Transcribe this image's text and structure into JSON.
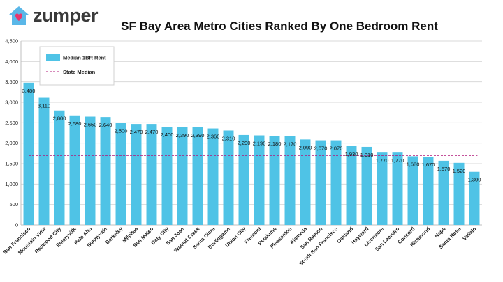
{
  "brand": {
    "name": "zumper",
    "icon": "house-heart-icon",
    "icon_color": "#5ab7e8",
    "heart_color": "#e8356d"
  },
  "chart_data": {
    "type": "bar",
    "title": "SF Bay Area Metro Cities Ranked By One Bedroom Rent",
    "xlabel": "",
    "ylabel": "",
    "ylim": [
      0,
      4500
    ],
    "yticks": [
      0,
      500,
      1000,
      1500,
      2000,
      2500,
      3000,
      3500,
      4000,
      4500
    ],
    "ytick_labels": [
      "0",
      "500",
      "1,000",
      "1,500",
      "2,000",
      "2,500",
      "3,000",
      "3,500",
      "4,000",
      "4,500"
    ],
    "grid": true,
    "legend_position": "top-left",
    "categories": [
      "San Francisco",
      "Mountain View",
      "Redwood City",
      "Emeryville",
      "Palo Alto",
      "Sunnyvale",
      "Berkeley",
      "Milpitas",
      "San Mateo",
      "Daly City",
      "San Jose",
      "Walnut Creek",
      "Santa Clara",
      "Burlingame",
      "Union City",
      "Fremont",
      "Petaluma",
      "Pleasanton",
      "Alameda",
      "San Ramon",
      "South San Francisco",
      "Oakland",
      "Hayward",
      "Livermore",
      "San Leandro",
      "Concord",
      "Richmond",
      "Napa",
      "Santa Rosa",
      "Vallejo"
    ],
    "series": [
      {
        "name": "Median 1BR Rent",
        "color": "#4fc3e6",
        "values": [
          3480,
          3110,
          2800,
          2680,
          2650,
          2640,
          2500,
          2470,
          2470,
          2400,
          2390,
          2390,
          2360,
          2310,
          2200,
          2190,
          2180,
          2170,
          2090,
          2070,
          2070,
          1930,
          1910,
          1770,
          1770,
          1680,
          1670,
          1570,
          1520,
          1300
        ]
      }
    ],
    "data_labels": [
      "3,480",
      "3,110",
      "2,800",
      "2,680",
      "2,650",
      "2,640",
      "2,500",
      "2,470",
      "2,470",
      "2,400",
      "2,390",
      "2,390",
      "2,360",
      "2,310",
      "2,200",
      "2,190",
      "2,180",
      "2,170",
      "2,090",
      "2,070",
      "2,070",
      "1,930",
      "1,910",
      "1,770",
      "1,770",
      "1,680",
      "1,670",
      "1,570",
      "1,520",
      "1,300"
    ],
    "reference_line": {
      "name": "State Median",
      "value": 1700,
      "color": "#b0187a"
    }
  }
}
